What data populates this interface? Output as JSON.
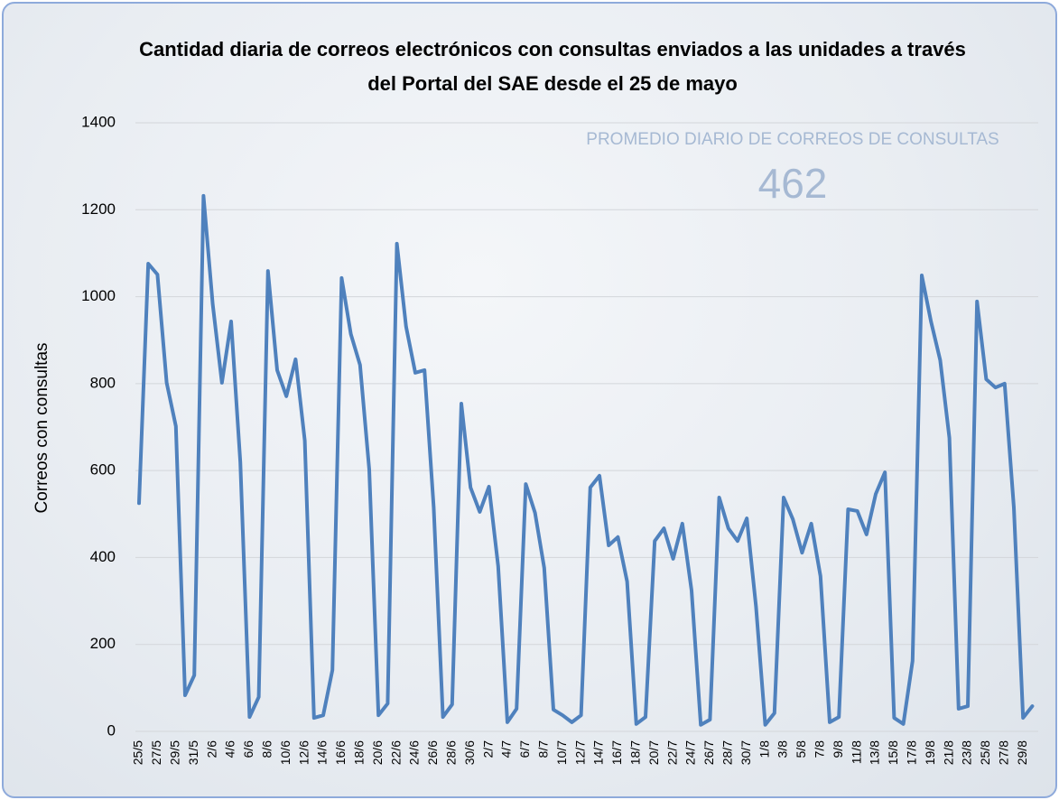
{
  "chart_data": {
    "type": "line",
    "title": "Cantidad diaria de correos electrónicos con consultas enviados a las unidades a través del Portal del SAE desde el 25 de mayo",
    "ylabel": "Correos con consultas",
    "annotations": [
      {
        "label": "PROMEDIO DIARIO DE CORREOS DE CONSULTAS",
        "value": 462
      }
    ],
    "categories": [
      "25/5",
      null,
      "27/5",
      null,
      "29/5",
      null,
      "31/5",
      null,
      "2/6",
      null,
      "4/6",
      null,
      "6/6",
      null,
      "8/6",
      null,
      "10/6",
      null,
      "12/6",
      null,
      "14/6",
      null,
      "16/6",
      null,
      "18/6",
      null,
      "20/6",
      null,
      "22/6",
      null,
      "24/6",
      null,
      "26/6",
      null,
      "28/6",
      null,
      "30/6",
      null,
      "2/7",
      null,
      "4/7",
      null,
      "6/7",
      null,
      "8/7",
      null,
      "10/7",
      null,
      "12/7",
      null,
      "14/7",
      null,
      "16/7",
      null,
      "18/7",
      null,
      "20/7",
      null,
      "22/7",
      null,
      "24/7",
      null,
      "26/7",
      null,
      "28/7",
      null,
      "30/7",
      null,
      "1/8",
      null,
      "3/8",
      null,
      "5/8",
      null,
      "7/8",
      null,
      "9/8",
      null,
      "11/8",
      null,
      "13/8",
      null,
      "15/8",
      null,
      "17/8",
      null,
      "19/8",
      null,
      "21/8",
      null,
      "23/8",
      null,
      "25/8",
      null,
      "27/8",
      null,
      "29/8",
      null
    ],
    "series": [
      {
        "name": "Correos con consultas",
        "color": "#4f81bd",
        "values": [
          525,
          1076,
          1051,
          802,
          702,
          83,
          129,
          1232,
          983,
          802,
          943,
          619,
          33,
          79,
          1059,
          831,
          771,
          856,
          669,
          31,
          37,
          141,
          1043,
          914,
          843,
          602,
          37,
          64,
          1122,
          931,
          825,
          831,
          515,
          33,
          62,
          754,
          561,
          505,
          563,
          380,
          21,
          52,
          569,
          503,
          376,
          50,
          37,
          21,
          37,
          561,
          588,
          428,
          447,
          345,
          17,
          33,
          438,
          467,
          397,
          478,
          324,
          15,
          27,
          538,
          467,
          438,
          490,
          287,
          15,
          42,
          538,
          488,
          411,
          478,
          357,
          21,
          33,
          511,
          507,
          453,
          546,
          596,
          31,
          17,
          162,
          1049,
          943,
          854,
          675,
          52,
          58,
          989,
          810,
          791,
          800,
          515,
          31,
          58
        ]
      }
    ],
    "ylim": [
      0,
      1400
    ],
    "yticks": [
      0,
      200,
      400,
      600,
      800,
      1000,
      1200,
      1400
    ],
    "grid": true
  }
}
